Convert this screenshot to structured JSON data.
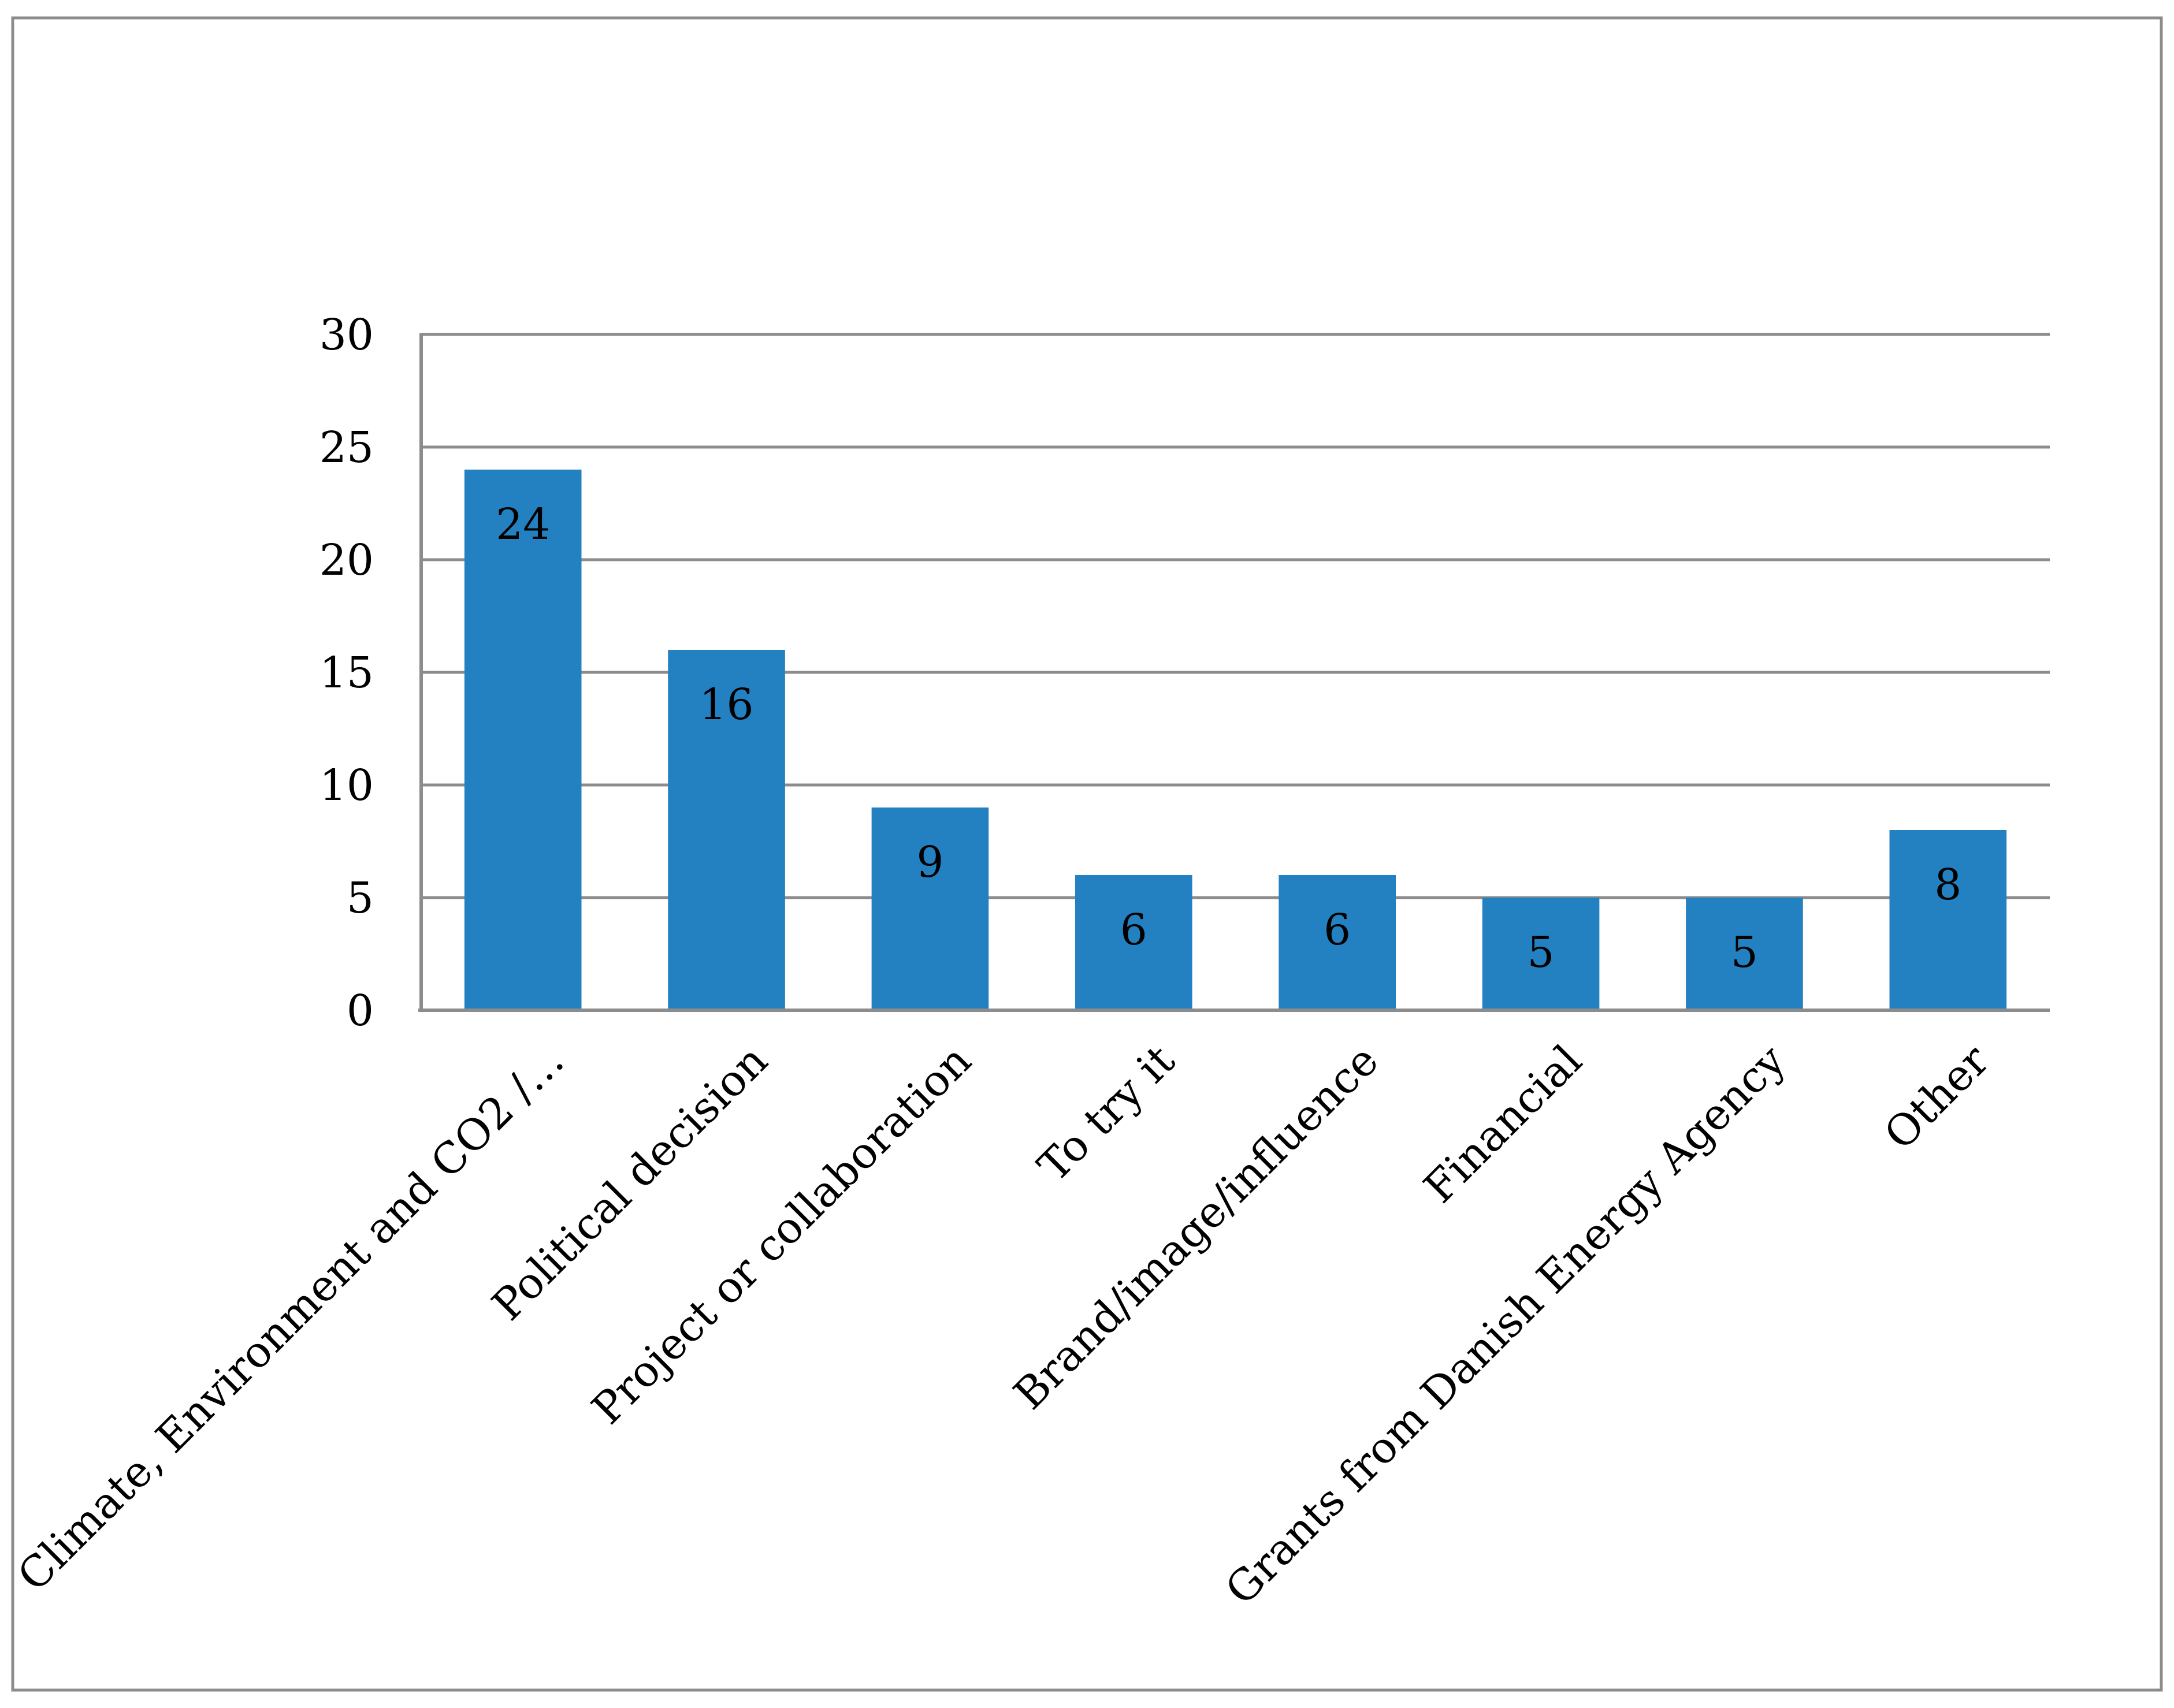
{
  "chart_data": {
    "type": "bar",
    "title": "",
    "xlabel": "",
    "ylabel": "",
    "categories": [
      "Climate, Environment and CO2 /…",
      "Political decision",
      "Project or collaboration",
      "To try it",
      "Brand/image/influence",
      "Financial",
      "Grants from Danish Energy Agency",
      "Other"
    ],
    "values": [
      24,
      16,
      9,
      6,
      6,
      5,
      5,
      8
    ],
    "data_labels": [
      "24",
      "16",
      "9",
      "6",
      "6",
      "5",
      "5",
      "8"
    ],
    "ylim": [
      0,
      30
    ],
    "yticks": [
      0,
      5,
      10,
      15,
      20,
      25,
      30
    ],
    "ytick_labels": [
      "0",
      "5",
      "10",
      "15",
      "20",
      "25",
      "30"
    ],
    "grid": true,
    "legend": "none",
    "colors": {
      "bar": "#2481c1",
      "grid": "#8c8c8c",
      "border": "#8c8c8c",
      "text": "#000000"
    }
  }
}
